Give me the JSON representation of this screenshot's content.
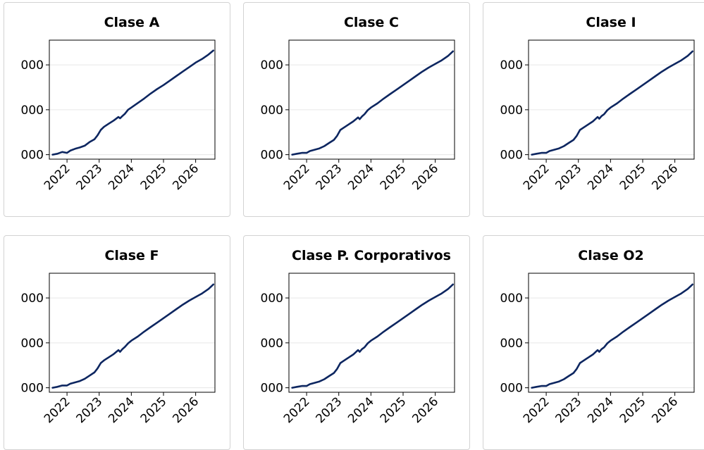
{
  "colors": {
    "line": "#0d2660",
    "grid": "#e6e6e6",
    "axis": "#000000",
    "card_border": "#d3d3d3"
  },
  "chart_data": [
    {
      "type": "line",
      "title": "Clase A",
      "ytick_labels": [
        "000",
        "000",
        "000"
      ],
      "x_ticks": [
        "2022",
        "2023",
        "2024",
        "2025",
        "2026"
      ],
      "series": [
        {
          "x": [
            2021.55,
            2021.7,
            2021.85,
            2022.0,
            2022.1,
            2022.25,
            2022.4,
            2022.55,
            2022.7,
            2022.85,
            2022.95,
            2023.05,
            2023.15,
            2023.3,
            2023.45,
            2023.6,
            2023.65,
            2023.72,
            2023.8,
            2023.9,
            2024.0,
            2024.2,
            2024.4,
            2024.6,
            2024.8,
            2025.0,
            2025.2,
            2025.4,
            2025.6,
            2025.8,
            2026.0,
            2026.2,
            2026.4,
            2026.55
          ],
          "y": [
            0.0,
            0.02,
            0.06,
            0.04,
            0.09,
            0.13,
            0.16,
            0.2,
            0.28,
            0.34,
            0.43,
            0.55,
            0.62,
            0.69,
            0.76,
            0.84,
            0.81,
            0.86,
            0.91,
            1.0,
            1.05,
            1.15,
            1.25,
            1.36,
            1.46,
            1.55,
            1.65,
            1.75,
            1.85,
            1.95,
            2.05,
            2.13,
            2.23,
            2.32
          ]
        }
      ]
    },
    {
      "type": "line",
      "title": "Clase C",
      "ytick_labels": [
        "000",
        "000",
        "000"
      ],
      "x_ticks": [
        "2022",
        "2023",
        "2024",
        "2025",
        "2026"
      ],
      "series": [
        {
          "x": [
            2021.55,
            2021.7,
            2021.85,
            2022.0,
            2022.1,
            2022.25,
            2022.4,
            2022.55,
            2022.7,
            2022.85,
            2022.95,
            2023.05,
            2023.15,
            2023.3,
            2023.45,
            2023.6,
            2023.65,
            2023.72,
            2023.8,
            2023.9,
            2024.0,
            2024.2,
            2024.4,
            2024.6,
            2024.8,
            2025.0,
            2025.2,
            2025.4,
            2025.6,
            2025.8,
            2026.0,
            2026.2,
            2026.4,
            2026.55
          ],
          "y": [
            0.0,
            0.02,
            0.04,
            0.04,
            0.08,
            0.11,
            0.14,
            0.19,
            0.26,
            0.33,
            0.42,
            0.55,
            0.6,
            0.67,
            0.74,
            0.83,
            0.79,
            0.85,
            0.9,
            0.99,
            1.05,
            1.14,
            1.25,
            1.35,
            1.45,
            1.55,
            1.65,
            1.75,
            1.85,
            1.94,
            2.02,
            2.1,
            2.2,
            2.3
          ]
        }
      ]
    },
    {
      "type": "line",
      "title": "Clase I",
      "ytick_labels": [
        "000",
        "000",
        "000"
      ],
      "x_ticks": [
        "2022",
        "2023",
        "2024",
        "2025",
        "2026"
      ],
      "series": [
        {
          "x": [
            2021.55,
            2021.7,
            2021.85,
            2022.0,
            2022.1,
            2022.25,
            2022.4,
            2022.55,
            2022.7,
            2022.85,
            2022.95,
            2023.05,
            2023.15,
            2023.3,
            2023.45,
            2023.6,
            2023.65,
            2023.72,
            2023.8,
            2023.9,
            2024.0,
            2024.2,
            2024.4,
            2024.6,
            2024.8,
            2025.0,
            2025.2,
            2025.4,
            2025.6,
            2025.8,
            2026.0,
            2026.2,
            2026.4,
            2026.55
          ],
          "y": [
            0.0,
            0.02,
            0.04,
            0.04,
            0.08,
            0.11,
            0.14,
            0.19,
            0.26,
            0.33,
            0.42,
            0.55,
            0.6,
            0.67,
            0.74,
            0.84,
            0.8,
            0.86,
            0.9,
            0.99,
            1.05,
            1.14,
            1.25,
            1.35,
            1.45,
            1.55,
            1.65,
            1.75,
            1.85,
            1.94,
            2.02,
            2.1,
            2.2,
            2.3
          ]
        }
      ]
    },
    {
      "type": "line",
      "title": "Clase F",
      "ytick_labels": [
        "000",
        "000",
        "000"
      ],
      "x_ticks": [
        "2022",
        "2023",
        "2024",
        "2025",
        "2026"
      ],
      "series": [
        {
          "x": [
            2021.55,
            2021.7,
            2021.85,
            2022.0,
            2022.1,
            2022.25,
            2022.4,
            2022.55,
            2022.7,
            2022.85,
            2022.95,
            2023.05,
            2023.15,
            2023.3,
            2023.45,
            2023.6,
            2023.65,
            2023.72,
            2023.8,
            2023.9,
            2024.0,
            2024.2,
            2024.4,
            2024.6,
            2024.8,
            2025.0,
            2025.2,
            2025.4,
            2025.6,
            2025.8,
            2026.0,
            2026.2,
            2026.4,
            2026.55
          ],
          "y": [
            0.0,
            0.02,
            0.05,
            0.05,
            0.09,
            0.12,
            0.15,
            0.2,
            0.27,
            0.34,
            0.43,
            0.55,
            0.61,
            0.68,
            0.75,
            0.84,
            0.8,
            0.86,
            0.91,
            0.99,
            1.05,
            1.14,
            1.25,
            1.35,
            1.45,
            1.55,
            1.65,
            1.75,
            1.85,
            1.94,
            2.02,
            2.1,
            2.2,
            2.3
          ]
        }
      ]
    },
    {
      "type": "line",
      "title": "Clase P. Corporativos",
      "ytick_labels": [
        "000",
        "000",
        "000"
      ],
      "x_ticks": [
        "2022",
        "2023",
        "2024",
        "2025",
        "2026"
      ],
      "series": [
        {
          "x": [
            2021.55,
            2021.7,
            2021.85,
            2022.0,
            2022.1,
            2022.25,
            2022.4,
            2022.55,
            2022.7,
            2022.85,
            2022.95,
            2023.05,
            2023.15,
            2023.3,
            2023.45,
            2023.6,
            2023.65,
            2023.72,
            2023.8,
            2023.9,
            2024.0,
            2024.2,
            2024.4,
            2024.6,
            2024.8,
            2025.0,
            2025.2,
            2025.4,
            2025.6,
            2025.8,
            2026.0,
            2026.2,
            2026.4,
            2026.55
          ],
          "y": [
            0.0,
            0.02,
            0.04,
            0.04,
            0.08,
            0.11,
            0.14,
            0.19,
            0.26,
            0.33,
            0.42,
            0.55,
            0.6,
            0.67,
            0.74,
            0.84,
            0.8,
            0.86,
            0.9,
            0.99,
            1.05,
            1.14,
            1.25,
            1.35,
            1.45,
            1.55,
            1.65,
            1.75,
            1.85,
            1.94,
            2.02,
            2.1,
            2.2,
            2.3
          ]
        }
      ]
    },
    {
      "type": "line",
      "title": "Clase O2",
      "ytick_labels": [
        "000",
        "000",
        "000"
      ],
      "x_ticks": [
        "2022",
        "2023",
        "2024",
        "2025",
        "2026"
      ],
      "series": [
        {
          "x": [
            2021.55,
            2021.7,
            2021.85,
            2022.0,
            2022.1,
            2022.25,
            2022.4,
            2022.55,
            2022.7,
            2022.85,
            2022.95,
            2023.05,
            2023.15,
            2023.3,
            2023.45,
            2023.6,
            2023.65,
            2023.72,
            2023.8,
            2023.9,
            2024.0,
            2024.2,
            2024.4,
            2024.6,
            2024.8,
            2025.0,
            2025.2,
            2025.4,
            2025.6,
            2025.8,
            2026.0,
            2026.2,
            2026.4,
            2026.55
          ],
          "y": [
            0.0,
            0.02,
            0.04,
            0.04,
            0.08,
            0.11,
            0.14,
            0.19,
            0.26,
            0.33,
            0.42,
            0.55,
            0.6,
            0.67,
            0.74,
            0.84,
            0.8,
            0.86,
            0.9,
            0.99,
            1.05,
            1.14,
            1.25,
            1.35,
            1.45,
            1.55,
            1.65,
            1.75,
            1.85,
            1.94,
            2.02,
            2.1,
            2.2,
            2.3
          ]
        }
      ]
    }
  ]
}
